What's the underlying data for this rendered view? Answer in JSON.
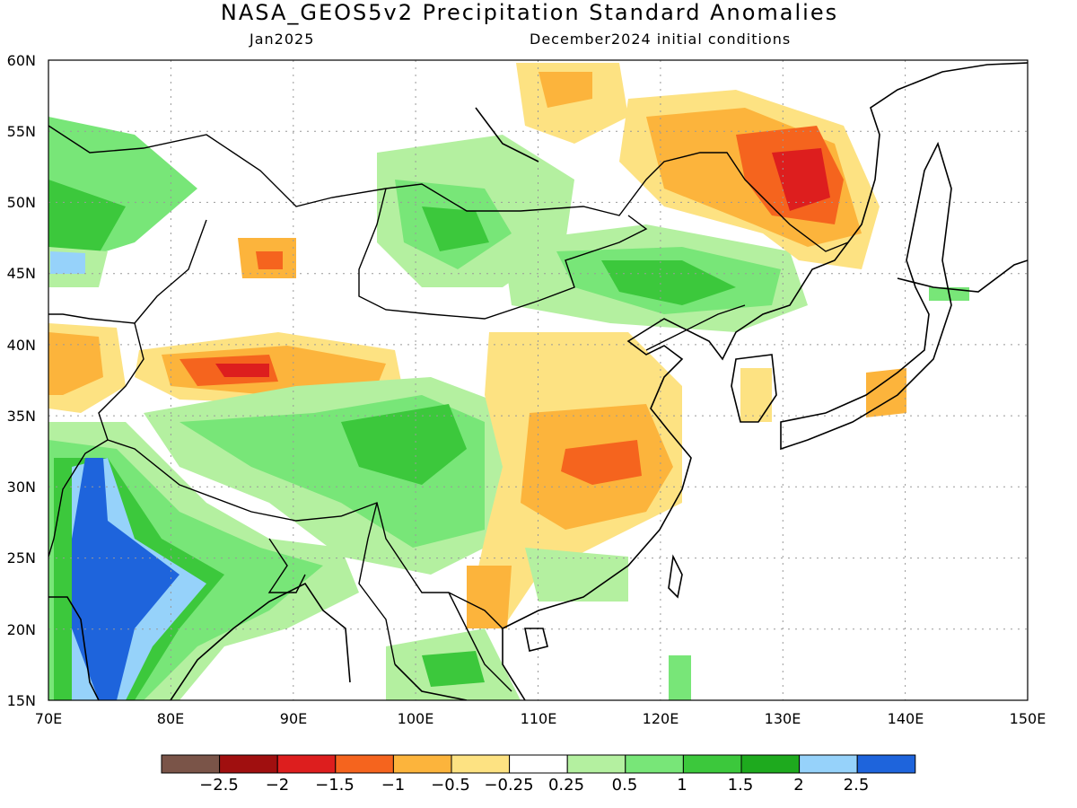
{
  "title": "NASA_GEOS5v2 Precipitation Standard Anomalies",
  "subtitle_left": "Jan2025",
  "subtitle_right": "December2024 initial conditions",
  "lat_labels": [
    "60N",
    "55N",
    "50N",
    "45N",
    "40N",
    "35N",
    "30N",
    "25N",
    "20N",
    "15N"
  ],
  "lon_labels": [
    "70E",
    "80E",
    "90E",
    "100E",
    "110E",
    "120E",
    "130E",
    "140E",
    "150E"
  ],
  "colorbar": {
    "colors": [
      "#7a5448",
      "#a00f0f",
      "#dd1e1e",
      "#f5641e",
      "#fcb43c",
      "#fde282",
      "#ffffff",
      "#b4f0a0",
      "#78e678",
      "#3cc83c",
      "#1eaa1e",
      "#96d2fa",
      "#1e64dc"
    ],
    "labels": [
      "−2.5",
      "−2",
      "−1.5",
      "−1",
      "−0.5",
      "−0.25",
      "0.25",
      "0.5",
      "1",
      "1.5",
      "2",
      "2.5"
    ]
  },
  "colors": {
    "map_background": "#ffffff",
    "gridline": "#999999",
    "coastline": "#000000"
  }
}
